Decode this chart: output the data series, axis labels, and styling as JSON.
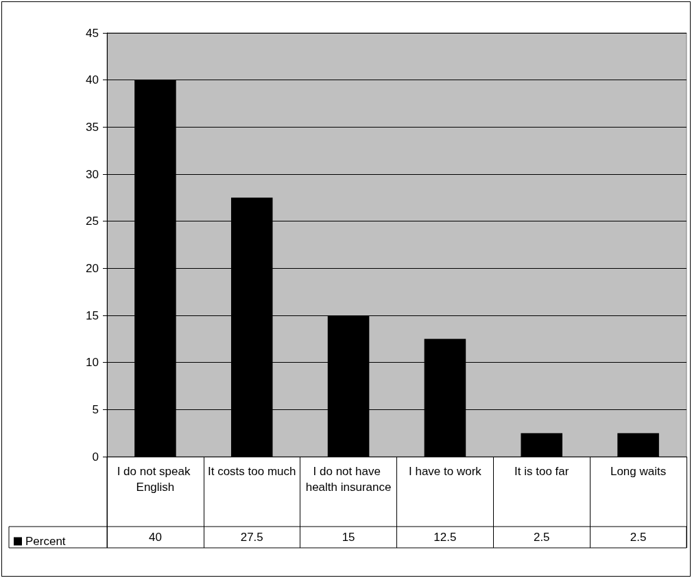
{
  "chart_data": {
    "type": "bar",
    "categories": [
      "I do not speak English",
      "It costs too much",
      "I do not have health insurance",
      "I have to work",
      "It is too far",
      "Long waits"
    ],
    "series": [
      {
        "name": "Percent",
        "color": "#000000",
        "values": [
          40,
          27.5,
          15,
          12.5,
          2.5,
          2.5
        ]
      }
    ],
    "ylim": [
      0,
      45
    ],
    "yticks": [
      0,
      5,
      10,
      15,
      20,
      25,
      30,
      35,
      40,
      45
    ],
    "grid": "y",
    "legend": "bottom",
    "data_labels": true
  }
}
